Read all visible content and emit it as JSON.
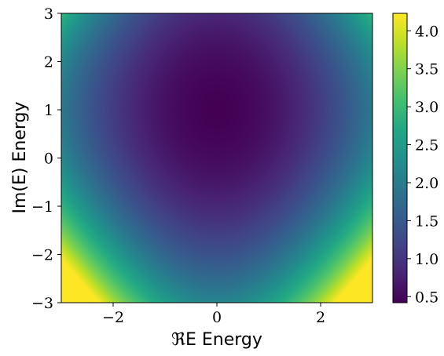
{
  "chart_data": {
    "type": "heatmap",
    "title": "",
    "xlabel": "ℜE Energy",
    "ylabel": "Im(E) Energy",
    "xlim": [
      -3,
      3
    ],
    "ylim": [
      -3,
      3
    ],
    "xticks": [
      -2,
      0,
      2
    ],
    "yticks": [
      -3,
      -2,
      -1,
      0,
      1,
      2,
      3
    ],
    "x_tick_labels": [
      "−2",
      "0",
      "2"
    ],
    "y_tick_labels": [
      "−3",
      "−2",
      "−1",
      "0",
      "1",
      "2",
      "3"
    ],
    "colormap": "viridis",
    "colorbar": {
      "range": [
        0.42,
        4.23
      ],
      "ticks": [
        0.5,
        1.0,
        1.5,
        2.0,
        2.5,
        3.0,
        3.5,
        4.0
      ],
      "tick_labels": [
        "0.5",
        "1.0",
        "1.5",
        "2.0",
        "2.5",
        "3.0",
        "3.5",
        "4.0"
      ]
    },
    "field": {
      "description": "smooth radial field, minimum near (0, 1), rising toward bottom corners",
      "minimum_at": [
        0.0,
        1.0
      ],
      "min_value": 0.42,
      "value_at_corner_minus3_minus3": 4.23,
      "value_at_corner_minus3_3": 2.2
    },
    "grid": false
  }
}
